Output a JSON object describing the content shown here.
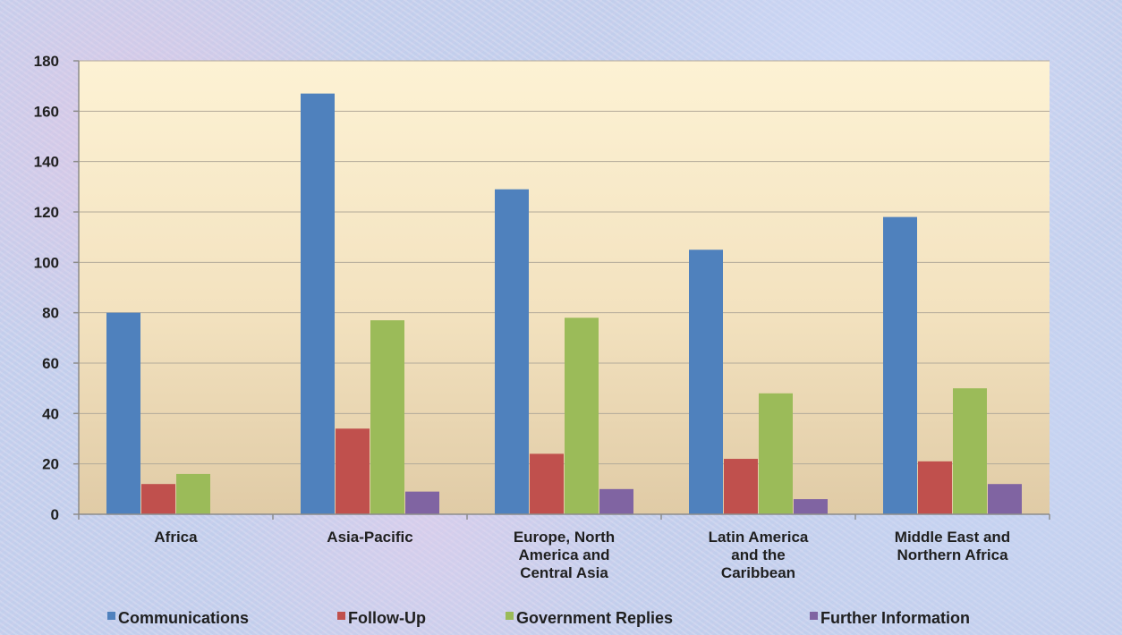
{
  "chart_data": {
    "type": "bar",
    "categories": [
      [
        "Africa"
      ],
      [
        "Asia-Pacific"
      ],
      [
        "Europe, North",
        "America and",
        "Central Asia"
      ],
      [
        "Latin America",
        "and the",
        "Caribbean"
      ],
      [
        "Middle East and",
        "Northern Africa"
      ]
    ],
    "series": [
      {
        "name": "Communications",
        "color": "#4f81bd",
        "values": [
          80,
          167,
          129,
          105,
          118
        ]
      },
      {
        "name": "Follow-Up",
        "color": "#c0504d",
        "values": [
          12,
          34,
          24,
          22,
          21
        ]
      },
      {
        "name": "Government Replies",
        "color": "#9bbb59",
        "values": [
          16,
          77,
          78,
          48,
          50
        ]
      },
      {
        "name": "Further Information",
        "color": "#8064a2",
        "values": [
          0,
          9,
          10,
          6,
          12
        ]
      }
    ],
    "yticks": [
      "0",
      "20",
      "40",
      "60",
      "80",
      "100",
      "120",
      "140",
      "160",
      "180"
    ],
    "ylim": [
      0,
      180
    ],
    "grid": true,
    "legend_position": "bottom"
  }
}
